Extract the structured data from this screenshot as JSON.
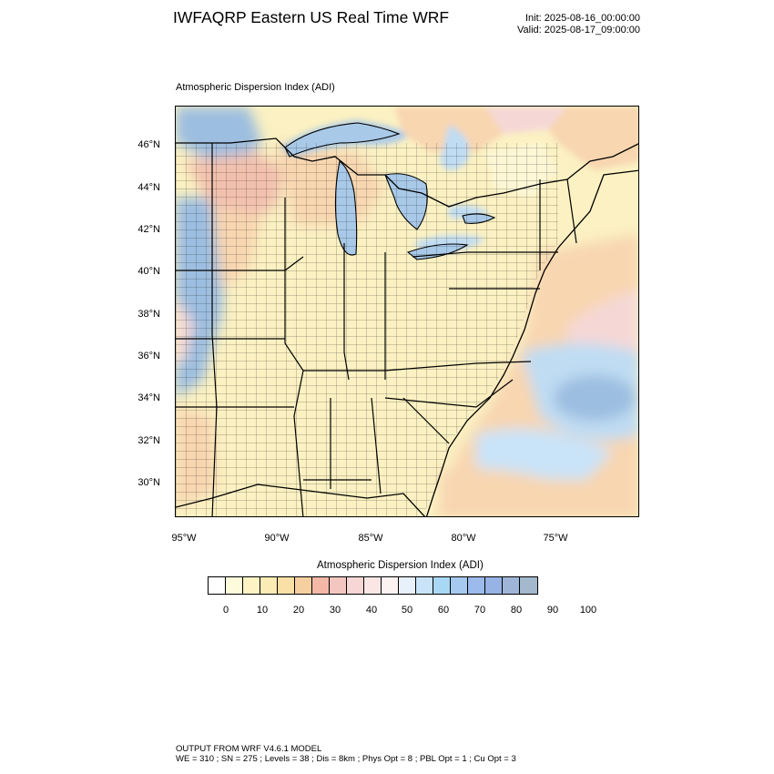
{
  "header": {
    "title": "IWFAQRP Eastern US Real Time WRF",
    "init": "Init: 2025-08-16_00:00:00",
    "valid": "Valid: 2025-08-17_09:00:00"
  },
  "panel": {
    "title": "Atmospheric Dispersion Index   (ADI)"
  },
  "map": {
    "lat_labels": [
      "46°N",
      "44°N",
      "42°N",
      "40°N",
      "38°N",
      "36°N",
      "34°N",
      "32°N",
      "30°N"
    ],
    "lon_labels": [
      "95°W",
      "90°W",
      "85°W",
      "80°W",
      "75°W"
    ],
    "colors": {
      "land_base": "#fbf1c2",
      "pale": "#fdf7d6",
      "peach": "#f8d6b0",
      "salmon": "#f2c1ae",
      "pink": "#f5d8d6",
      "light_blue": "#bfdcf3",
      "blue": "#9cbee0",
      "steel_blue": "#8fb0d4",
      "lake": "#a9c9e8"
    }
  },
  "colorbar": {
    "title": "Atmospheric Dispersion Index  (ADI)",
    "colors": [
      "#ffffff",
      "#fefbdd",
      "#fdf3c4",
      "#fbebb4",
      "#fae0a6",
      "#f6cfa0",
      "#f3b8a6",
      "#f4c6c0",
      "#f7d6d6",
      "#fbe6e6",
      "#fdf2f2",
      "#e8f0fb",
      "#c9e3f8",
      "#a8d8f4",
      "#a6c9ef",
      "#9cbaeb",
      "#97b2e4",
      "#9fb5d8",
      "#a3b8cc"
    ],
    "labels": [
      "0",
      "10",
      "20",
      "30",
      "40",
      "50",
      "60",
      "70",
      "80",
      "90",
      "100"
    ]
  },
  "footer": {
    "line1": "OUTPUT FROM WRF V4.6.1 MODEL",
    "line2": "WE = 310 ; SN = 275 ; Levels = 38 ; Dis = 8km ; Phys Opt = 8 ; PBL Opt = 1 ; Cu Opt = 3"
  }
}
